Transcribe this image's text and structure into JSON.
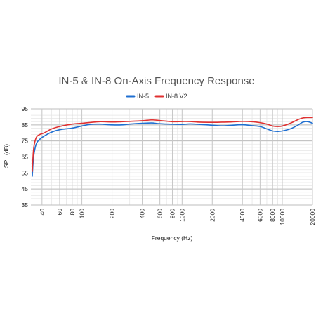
{
  "chart_data": {
    "type": "line",
    "title": "IN-5 & IN-8 On-Axis Frequency Response",
    "xlabel": "Frequency (Hz)",
    "ylabel": "SPL (dB)",
    "x_scale": "log",
    "xlim": [
      31,
      20000
    ],
    "ylim": [
      35,
      95
    ],
    "grid": true,
    "legend_position": "top",
    "x_ticks": [
      "40",
      "60",
      "80",
      "100",
      "200",
      "400",
      "600",
      "800",
      "1000",
      "2000",
      "4000",
      "6000",
      "8000",
      "10000",
      "20000"
    ],
    "y_ticks": [
      "35",
      "45",
      "55",
      "65",
      "75",
      "85",
      "95"
    ],
    "x_tick_values": [
      40,
      60,
      80,
      100,
      200,
      400,
      600,
      800,
      1000,
      2000,
      4000,
      6000,
      8000,
      10000,
      20000
    ],
    "y_tick_values": [
      35,
      45,
      55,
      65,
      75,
      85,
      95
    ],
    "series": [
      {
        "name": "IN-5",
        "color": "#1f6fd1",
        "x": [
          32,
          33,
          35,
          38,
          42,
          50,
          60,
          80,
          100,
          120,
          150,
          200,
          250,
          300,
          400,
          500,
          600,
          800,
          1000,
          1200,
          1500,
          2000,
          2500,
          3000,
          4000,
          5000,
          6000,
          7000,
          8000,
          9000,
          10000,
          12000,
          14000,
          16000,
          18000,
          20000
        ],
        "y": [
          53,
          65,
          73,
          76,
          78,
          80.5,
          82,
          83,
          84.3,
          85.3,
          85.5,
          85,
          85,
          85.5,
          86,
          86.2,
          85.7,
          85.4,
          85.3,
          85.6,
          85.3,
          84.8,
          84.4,
          84.7,
          85.1,
          84.5,
          84,
          82.5,
          81.2,
          80.9,
          81.2,
          82.5,
          84.5,
          86.7,
          87,
          86
        ]
      },
      {
        "name": "IN-8 V2",
        "color": "#e03030",
        "x": [
          32,
          33,
          35,
          38,
          42,
          50,
          60,
          80,
          100,
          120,
          150,
          200,
          250,
          300,
          400,
          500,
          600,
          800,
          1000,
          1200,
          1500,
          2000,
          2500,
          3000,
          4000,
          5000,
          6000,
          7000,
          8000,
          9000,
          10000,
          12000,
          14000,
          16000,
          18000,
          20000
        ],
        "y": [
          56,
          70,
          77,
          79,
          80,
          82.5,
          84,
          85.5,
          86,
          86.5,
          87,
          86.8,
          87,
          87.2,
          87.6,
          88.1,
          87.7,
          87,
          87.1,
          87.1,
          86.7,
          86.6,
          86.7,
          86.8,
          87.2,
          87,
          86.4,
          85.5,
          84.3,
          84,
          84.3,
          86,
          88,
          89.3,
          89.6,
          89.6
        ]
      }
    ]
  }
}
